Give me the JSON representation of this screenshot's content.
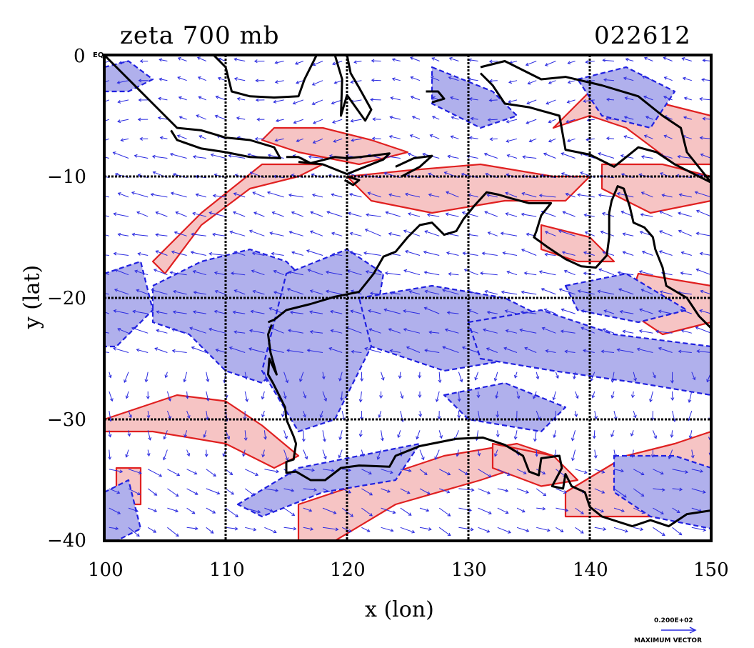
{
  "title": {
    "field": "zeta 700 mb",
    "stamp": "022612"
  },
  "corner_label": "EQ",
  "axes": {
    "xlabel": "x (lon)",
    "ylabel": "y (lat)",
    "xticks": [
      "100",
      "110",
      "120",
      "130",
      "140",
      "150"
    ],
    "yticks": [
      "0",
      "−10",
      "−20",
      "−30",
      "−40"
    ]
  },
  "legend": {
    "value": "0.200E+02",
    "label": "MAXIMUM VECTOR"
  },
  "colors": {
    "positive_fill": "#f6c4c4",
    "positive_line": "#e02020",
    "negative_fill": "#b0b0ec",
    "negative_line": "#2020e0",
    "vector": "#2a2ae0",
    "coast": "#000000",
    "grid": "#000000"
  },
  "chart_data": {
    "type": "map",
    "xlim": [
      100,
      150
    ],
    "ylim": [
      -40,
      0
    ],
    "grid": true,
    "grid_lon": [
      110,
      120,
      130,
      140
    ],
    "grid_lat": [
      -10,
      -20,
      -30
    ],
    "positive_regions": [
      [
        [
          100,
          -30
        ],
        [
          106,
          -28
        ],
        [
          110,
          -28.5
        ],
        [
          113,
          -30.5
        ],
        [
          116,
          -33
        ],
        [
          114,
          -34
        ],
        [
          110,
          -32
        ],
        [
          104,
          -31
        ],
        [
          100,
          -31
        ]
      ],
      [
        [
          104,
          -17
        ],
        [
          108,
          -13
        ],
        [
          113,
          -9
        ],
        [
          118,
          -9
        ],
        [
          116,
          -10
        ],
        [
          112,
          -11
        ],
        [
          108,
          -14
        ],
        [
          105,
          -18
        ]
      ],
      [
        [
          114,
          -6
        ],
        [
          118,
          -6
        ],
        [
          122,
          -7
        ],
        [
          125,
          -8
        ],
        [
          121,
          -9
        ],
        [
          116,
          -8
        ],
        [
          113,
          -7
        ]
      ],
      [
        [
          120,
          -10
        ],
        [
          125,
          -9.5
        ],
        [
          131,
          -9
        ],
        [
          137,
          -10
        ],
        [
          140,
          -10
        ],
        [
          138,
          -12
        ],
        [
          133,
          -12
        ],
        [
          127,
          -13
        ],
        [
          122,
          -12
        ]
      ],
      [
        [
          136,
          -14
        ],
        [
          140,
          -15
        ],
        [
          142,
          -17
        ],
        [
          139,
          -17
        ],
        [
          136,
          -16
        ]
      ],
      [
        [
          141,
          -9
        ],
        [
          146,
          -9
        ],
        [
          150,
          -10
        ],
        [
          150,
          -12
        ],
        [
          145,
          -13
        ],
        [
          141,
          -11
        ]
      ],
      [
        [
          144,
          -18
        ],
        [
          150,
          -19
        ],
        [
          150,
          -22
        ],
        [
          146,
          -23
        ],
        [
          143,
          -21
        ]
      ],
      [
        [
          116,
          -37
        ],
        [
          122,
          -35
        ],
        [
          128,
          -33
        ],
        [
          134,
          -32
        ],
        [
          137,
          -33
        ],
        [
          131,
          -35
        ],
        [
          124,
          -37
        ],
        [
          119,
          -40
        ],
        [
          116,
          -40
        ]
      ],
      [
        [
          132,
          -32
        ],
        [
          137,
          -33
        ],
        [
          139,
          -35
        ],
        [
          136,
          -35.5
        ],
        [
          132,
          -34
        ]
      ],
      [
        [
          101,
          -34
        ],
        [
          103,
          -34
        ],
        [
          103,
          -37
        ],
        [
          101,
          -37
        ]
      ],
      [
        [
          138,
          -36
        ],
        [
          143,
          -33
        ],
        [
          147,
          -32
        ],
        [
          150,
          -31
        ],
        [
          150,
          -36
        ],
        [
          147,
          -38
        ],
        [
          142,
          -38
        ],
        [
          138,
          -38
        ]
      ],
      [
        [
          137,
          -6
        ],
        [
          140,
          -3
        ],
        [
          146,
          -4
        ],
        [
          150,
          -5
        ],
        [
          150,
          -9
        ],
        [
          147,
          -9
        ],
        [
          143,
          -6
        ],
        [
          140,
          -5
        ]
      ]
    ],
    "negative_regions": [
      [
        [
          104,
          -19
        ],
        [
          108,
          -17
        ],
        [
          112,
          -16
        ],
        [
          115,
          -17
        ],
        [
          117,
          -19
        ],
        [
          116,
          -24
        ],
        [
          113,
          -27
        ],
        [
          110,
          -26
        ],
        [
          107,
          -23
        ],
        [
          104,
          -22
        ]
      ],
      [
        [
          115,
          -18
        ],
        [
          120,
          -16
        ],
        [
          123,
          -18
        ],
        [
          122,
          -24
        ],
        [
          119,
          -30
        ],
        [
          116,
          -31
        ],
        [
          113,
          -26
        ]
      ],
      [
        [
          121,
          -20
        ],
        [
          127,
          -19
        ],
        [
          133,
          -20
        ],
        [
          137,
          -22
        ],
        [
          134,
          -25
        ],
        [
          128,
          -26
        ],
        [
          122,
          -24
        ]
      ],
      [
        [
          130,
          -22
        ],
        [
          136,
          -21
        ],
        [
          142,
          -23
        ],
        [
          150,
          -24
        ],
        [
          150,
          -28
        ],
        [
          144,
          -27
        ],
        [
          137,
          -26
        ],
        [
          131,
          -25
        ]
      ],
      [
        [
          138,
          -19
        ],
        [
          143,
          -18
        ],
        [
          148,
          -21
        ],
        [
          144,
          -22
        ],
        [
          139,
          -21
        ]
      ],
      [
        [
          100,
          -18
        ],
        [
          103,
          -17
        ],
        [
          104,
          -21
        ],
        [
          101,
          -24
        ],
        [
          100,
          -24
        ]
      ],
      [
        [
          100,
          -36
        ],
        [
          102,
          -35
        ],
        [
          103,
          -39
        ],
        [
          101,
          -40
        ],
        [
          100,
          -40
        ]
      ],
      [
        [
          111,
          -37
        ],
        [
          116,
          -34
        ],
        [
          121,
          -33
        ],
        [
          126,
          -32
        ],
        [
          124,
          -35
        ],
        [
          118,
          -36
        ],
        [
          113,
          -38
        ]
      ],
      [
        [
          127,
          -1
        ],
        [
          132,
          -3
        ],
        [
          134,
          -5
        ],
        [
          131,
          -6
        ],
        [
          127,
          -4
        ]
      ],
      [
        [
          139,
          -2
        ],
        [
          143,
          -1
        ],
        [
          147,
          -3
        ],
        [
          145,
          -6
        ],
        [
          141,
          -5
        ]
      ],
      [
        [
          100,
          -1
        ],
        [
          102,
          -0.5
        ],
        [
          104,
          -2
        ],
        [
          102,
          -3
        ],
        [
          100,
          -3
        ]
      ],
      [
        [
          128,
          -28
        ],
        [
          133,
          -27
        ],
        [
          138,
          -29
        ],
        [
          136,
          -31
        ],
        [
          130,
          -30
        ]
      ],
      [
        [
          142,
          -33
        ],
        [
          147,
          -33
        ],
        [
          150,
          -34
        ],
        [
          150,
          -39
        ],
        [
          145,
          -38
        ],
        [
          142,
          -36
        ]
      ]
    ],
    "coastlines": [
      [
        [
          100,
          0
        ],
        [
          101.5,
          -1.5
        ],
        [
          103.5,
          -3.5
        ],
        [
          105,
          -5
        ],
        [
          106,
          -6
        ],
        [
          108,
          -6.2
        ],
        [
          110,
          -6.8
        ],
        [
          112,
          -7
        ],
        [
          114,
          -7.6
        ],
        [
          114.5,
          -8.5
        ],
        [
          112,
          -8.4
        ],
        [
          110,
          -8
        ],
        [
          108,
          -7.7
        ],
        [
          106,
          -7
        ],
        [
          105.5,
          -6.2
        ]
      ],
      [
        [
          115,
          -8.4
        ],
        [
          116,
          -8.4
        ],
        [
          117,
          -8.9
        ],
        [
          119,
          -8.4
        ],
        [
          120,
          -8.5
        ],
        [
          122,
          -8.3
        ],
        [
          123.5,
          -8.1
        ],
        [
          123,
          -8.6
        ],
        [
          120,
          -9.8
        ],
        [
          118,
          -9
        ],
        [
          116,
          -8.8
        ]
      ],
      [
        [
          120,
          -10
        ],
        [
          121,
          -10.3
        ],
        [
          120.5,
          -10.7
        ],
        [
          119.8,
          -10.3
        ]
      ],
      [
        [
          124,
          -9.2
        ],
        [
          125.5,
          -8.5
        ],
        [
          127,
          -8.3
        ],
        [
          126,
          -9.2
        ],
        [
          124.5,
          -10
        ]
      ],
      [
        [
          109,
          0
        ],
        [
          110,
          -1
        ],
        [
          110.5,
          -3
        ],
        [
          112,
          -3.4
        ],
        [
          114,
          -3.5
        ],
        [
          116,
          -3.4
        ],
        [
          116.5,
          -2
        ],
        [
          117.5,
          0
        ]
      ],
      [
        [
          120,
          0
        ],
        [
          120.3,
          -1.5
        ],
        [
          121,
          -2.7
        ],
        [
          122,
          -4.5
        ],
        [
          121.5,
          -5.4
        ],
        [
          120.5,
          -4
        ],
        [
          120,
          -3.3
        ],
        [
          119.5,
          -5
        ],
        [
          119.6,
          -2
        ],
        [
          119,
          0
        ]
      ],
      [
        [
          126.5,
          -3
        ],
        [
          127.5,
          -3
        ],
        [
          128,
          -3.6
        ],
        [
          127,
          -3.9
        ]
      ],
      [
        [
          131,
          -1
        ],
        [
          133,
          -0.5
        ],
        [
          134,
          -1
        ],
        [
          136,
          -2
        ],
        [
          138,
          -1.8
        ],
        [
          141,
          -2.5
        ],
        [
          144,
          -3.4
        ],
        [
          146,
          -5
        ],
        [
          147.5,
          -6
        ],
        [
          148,
          -8
        ],
        [
          150,
          -10.5
        ],
        [
          149,
          -10
        ],
        [
          147,
          -9
        ],
        [
          145.5,
          -8
        ],
        [
          144,
          -7.6
        ],
        [
          142,
          -9.2
        ],
        [
          140,
          -8.2
        ],
        [
          138,
          -7.8
        ],
        [
          137.5,
          -5
        ],
        [
          135,
          -4.3
        ],
        [
          133,
          -4
        ],
        [
          132,
          -2.5
        ],
        [
          131,
          -1.5
        ]
      ],
      [
        [
          113.5,
          -22
        ],
        [
          114,
          -21.8
        ],
        [
          115,
          -21
        ],
        [
          117,
          -20.5
        ],
        [
          119,
          -19.9
        ],
        [
          121,
          -19.5
        ],
        [
          122.2,
          -18
        ],
        [
          123,
          -16.6
        ],
        [
          124,
          -16.2
        ],
        [
          125,
          -15
        ],
        [
          126,
          -14
        ],
        [
          127,
          -13.8
        ],
        [
          128,
          -14.8
        ],
        [
          129,
          -14.5
        ],
        [
          129.6,
          -13.5
        ],
        [
          130.5,
          -12.4
        ],
        [
          131.5,
          -11.3
        ],
        [
          132.5,
          -11.5
        ],
        [
          133.5,
          -11.8
        ],
        [
          135,
          -12.2
        ],
        [
          136.8,
          -12.2
        ],
        [
          136,
          -13.2
        ],
        [
          135.6,
          -14.5
        ],
        [
          135.4,
          -15
        ],
        [
          136.5,
          -15.8
        ],
        [
          138,
          -16.8
        ],
        [
          139.3,
          -17.4
        ],
        [
          140.5,
          -17.5
        ],
        [
          141.4,
          -16.5
        ],
        [
          141.6,
          -15
        ],
        [
          141.6,
          -13
        ],
        [
          141.8,
          -12
        ],
        [
          142.3,
          -10.8
        ],
        [
          142.8,
          -11
        ],
        [
          143.3,
          -12.5
        ],
        [
          143.6,
          -13.8
        ],
        [
          144.5,
          -14.2
        ],
        [
          145.2,
          -15
        ],
        [
          145.4,
          -16
        ],
        [
          146,
          -17.5
        ],
        [
          146.3,
          -19
        ],
        [
          148,
          -20
        ],
        [
          149,
          -21.5
        ],
        [
          150,
          -22.5
        ]
      ],
      [
        [
          150,
          -37.5
        ],
        [
          148,
          -37.8
        ],
        [
          146.5,
          -38.8
        ],
        [
          145,
          -38.3
        ],
        [
          143.5,
          -38.8
        ],
        [
          141,
          -38
        ],
        [
          140,
          -37.2
        ],
        [
          139.6,
          -36
        ],
        [
          138.5,
          -35.5
        ],
        [
          138,
          -34.5
        ],
        [
          137.8,
          -35.7
        ],
        [
          136.9,
          -35.5
        ],
        [
          137.7,
          -34
        ],
        [
          137.5,
          -33
        ],
        [
          136,
          -33.2
        ],
        [
          135.8,
          -34.6
        ],
        [
          135,
          -34.3
        ],
        [
          134.5,
          -33
        ],
        [
          133,
          -32.1
        ],
        [
          131.2,
          -31.5
        ],
        [
          129,
          -31.6
        ],
        [
          126,
          -32.2
        ],
        [
          124,
          -33
        ],
        [
          123.5,
          -33.9
        ],
        [
          121,
          -33.8
        ],
        [
          119.5,
          -34
        ],
        [
          118.2,
          -35
        ],
        [
          117,
          -35
        ],
        [
          115.8,
          -34.3
        ],
        [
          115,
          -34.4
        ],
        [
          115,
          -33.5
        ],
        [
          115.6,
          -33.3
        ],
        [
          115.8,
          -32
        ],
        [
          115.6,
          -31.4
        ],
        [
          115,
          -30
        ],
        [
          114.9,
          -29
        ],
        [
          114.5,
          -28.2
        ],
        [
          113.9,
          -27
        ],
        [
          113.5,
          -26.3
        ],
        [
          113.6,
          -25
        ],
        [
          114.2,
          -26.3
        ],
        [
          113.7,
          -24.5
        ],
        [
          113.5,
          -23
        ],
        [
          113.8,
          -22.2
        ]
      ],
      [
        [
          146,
          -40
        ],
        [
          146.5,
          -40
        ],
        [
          148,
          -40
        ],
        [
          148.3,
          -40
        ]
      ]
    ]
  }
}
